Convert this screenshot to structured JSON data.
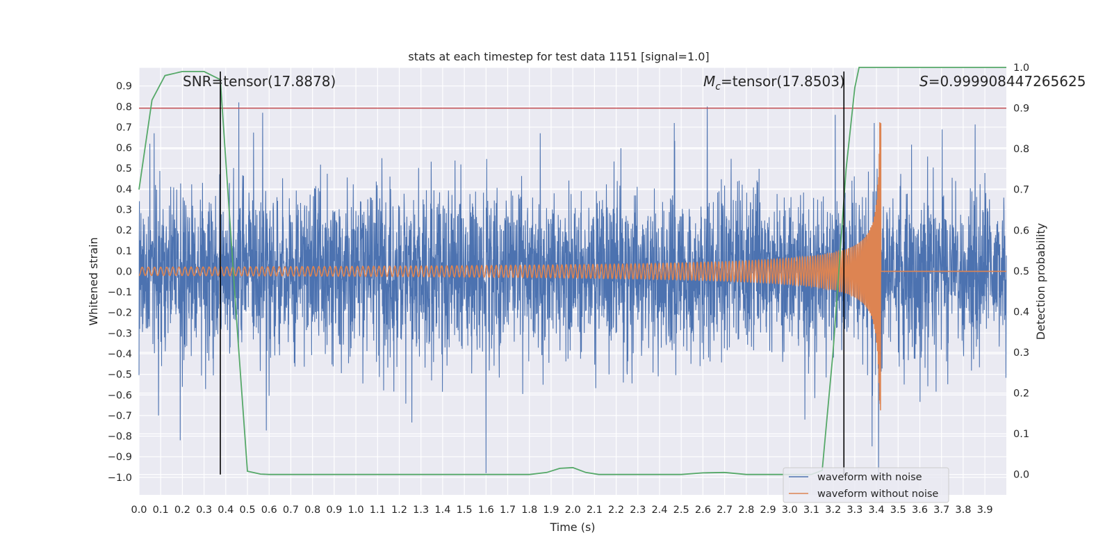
{
  "chart_data": {
    "type": "line",
    "title": "stats at each timestep for test data 1151 [signal=1.0]",
    "xlabel": "Time (s)",
    "ylabel": "Whitened strain",
    "ylabel_right": "Detection probability",
    "xlim": [
      0.0,
      3.999
    ],
    "ylim": [
      -1.085,
      0.99
    ],
    "ylim_right": [
      -0.05,
      1.0
    ],
    "x_ticks": [
      "0.0",
      "0.1",
      "0.2",
      "0.3",
      "0.4",
      "0.5",
      "0.6",
      "0.7",
      "0.8",
      "0.9",
      "1.0",
      "1.1",
      "1.2",
      "1.3",
      "1.4",
      "1.5",
      "1.6",
      "1.7",
      "1.8",
      "1.9",
      "2.0",
      "2.1",
      "2.2",
      "2.3",
      "2.4",
      "2.5",
      "2.6",
      "2.7",
      "2.8",
      "2.9",
      "3.0",
      "3.1",
      "3.2",
      "3.3",
      "3.4",
      "3.5",
      "3.6",
      "3.7",
      "3.8",
      "3.9"
    ],
    "y_ticks": [
      "0.9",
      "0.8",
      "0.7",
      "0.6",
      "0.5",
      "0.4",
      "0.3",
      "0.2",
      "0.1",
      "0.0",
      "−0.1",
      "−0.2",
      "−0.3",
      "−0.4",
      "−0.5",
      "−0.6",
      "−0.7",
      "−0.8",
      "−0.9",
      "−1.0"
    ],
    "y_ticks_right": [
      "1.0",
      "0.9",
      "0.8",
      "0.7",
      "0.6",
      "0.5",
      "0.4",
      "0.3",
      "0.2",
      "0.1",
      "0.0"
    ],
    "grid": true,
    "legend_position": "bottom-right",
    "annotations": {
      "snr": "SNR=tensor(17.8878)",
      "mc_symbol": "M",
      "mc_sub": "c",
      "mc_value": "=tensor(17.8503)",
      "s_symbol": "S",
      "s_value": "=0.999908447265625"
    },
    "vlines_x": [
      0.375,
      3.25
    ],
    "threshold_right": 0.9,
    "series": [
      {
        "name": "waveform with noise",
        "color": "#4c72b0",
        "axis": "left",
        "description": "dense noisy strain time series, amplitude mostly within ±0.5 with spikes",
        "peaks": [
          {
            "x": 0.05,
            "y": 0.62
          },
          {
            "x": 0.07,
            "y": 0.67
          },
          {
            "x": 0.09,
            "y": -0.7
          },
          {
            "x": 0.19,
            "y": -0.82
          },
          {
            "x": 0.46,
            "y": 0.82
          },
          {
            "x": 0.57,
            "y": 0.77
          },
          {
            "x": 1.6,
            "y": -0.98
          },
          {
            "x": 1.85,
            "y": 0.67
          },
          {
            "x": 2.62,
            "y": 0.8
          },
          {
            "x": 3.21,
            "y": 0.76
          },
          {
            "x": 3.39,
            "y": 0.72
          },
          {
            "x": 3.41,
            "y": 0.85
          },
          {
            "x": 3.41,
            "y": -1.0
          },
          {
            "x": 3.38,
            "y": -0.85
          },
          {
            "x": 3.07,
            "y": -0.72
          }
        ]
      },
      {
        "name": "waveform without noise",
        "color": "#dd8452",
        "axis": "left",
        "description": "chirp signal: oscillation with increasing frequency and amplitude, merger near t=3.42 s, flat at 0 afterwards",
        "merger_time": 3.42,
        "start_amplitude": 0.02,
        "peak_amplitude": 0.73
      },
      {
        "name": "",
        "color": "#55a868",
        "axis": "right",
        "x": [
          0.0,
          0.06,
          0.12,
          0.2,
          0.25,
          0.3,
          0.375,
          0.45,
          0.5,
          0.56,
          0.6,
          1.0,
          1.5,
          1.8,
          1.88,
          1.94,
          2.0,
          2.06,
          2.12,
          2.5,
          2.6,
          2.7,
          2.8,
          3.1,
          3.15,
          3.2,
          3.26,
          3.3,
          3.32,
          3.999
        ],
        "values": [
          0.7,
          0.92,
          0.98,
          0.99,
          0.99,
          0.99,
          0.97,
          0.38,
          0.008,
          0.001,
          0.0,
          0.0,
          0.0,
          0.0,
          0.005,
          0.015,
          0.017,
          0.005,
          0.0,
          0.0,
          0.004,
          0.005,
          0.0,
          0.0,
          0.01,
          0.3,
          0.75,
          0.95,
          1.0,
          1.0
        ]
      },
      {
        "name": "",
        "color": "#c44e52",
        "axis": "right",
        "description": "detection threshold line",
        "x": [
          0.0,
          3.999
        ],
        "values": [
          0.9,
          0.9
        ]
      }
    ]
  }
}
